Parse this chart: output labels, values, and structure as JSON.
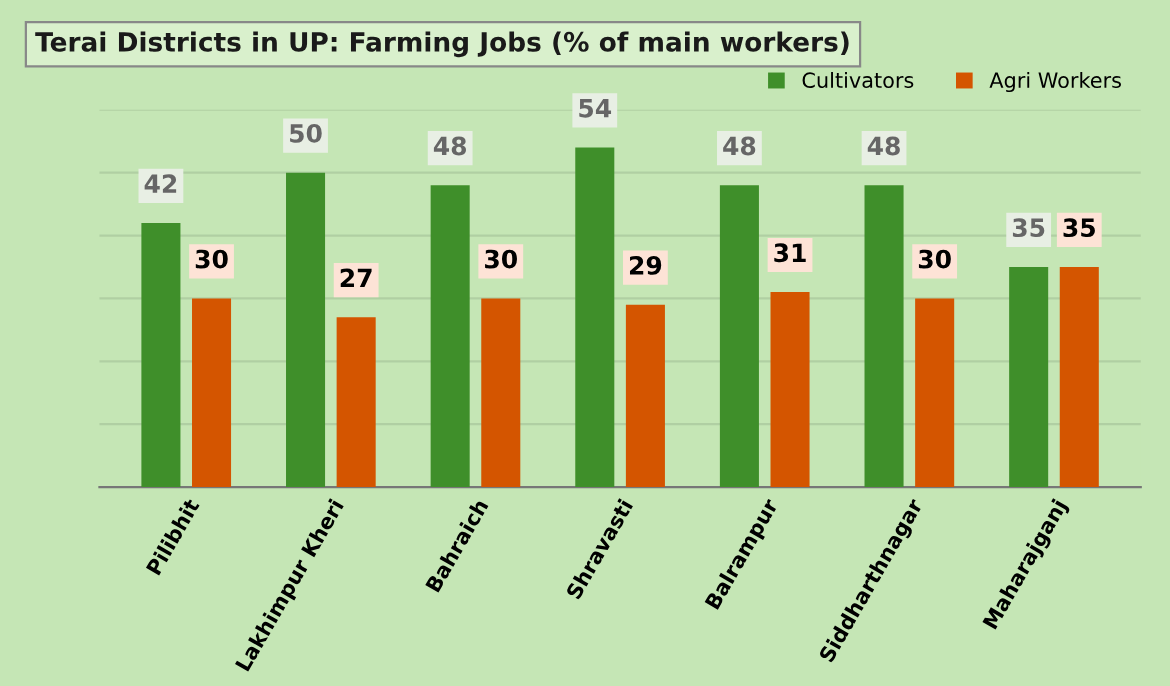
{
  "chart_data": {
    "type": "bar",
    "title": "Terai Districts in UP: Farming Jobs (% of main workers)",
    "categories": [
      "Pilibhit",
      "Lakhimpur Kheri",
      "Bahraich",
      "Shravasti",
      "Balrampur",
      "Siddharthnagar",
      "Maharajganj"
    ],
    "series": [
      {
        "name": "Cultivators",
        "color": "#3f8f2a",
        "values": [
          42,
          50,
          48,
          54,
          48,
          48,
          35
        ]
      },
      {
        "name": "Agri Workers",
        "color": "#d45500",
        "values": [
          30,
          27,
          30,
          29,
          31,
          30,
          35
        ]
      }
    ],
    "ylim": [
      0,
      60
    ],
    "yticks": [
      {
        "value": 0,
        "label": null
      },
      {
        "value": 10,
        "label": null
      },
      {
        "value": 20,
        "label": null
      },
      {
        "value": 30,
        "label": null
      },
      {
        "value": 40,
        "label": null
      },
      {
        "value": 50,
        "label": null
      },
      {
        "value": 60,
        "label": null
      }
    ],
    "data_labels": true,
    "legend": "top right",
    "grid": "y",
    "tick_labels": "x"
  }
}
